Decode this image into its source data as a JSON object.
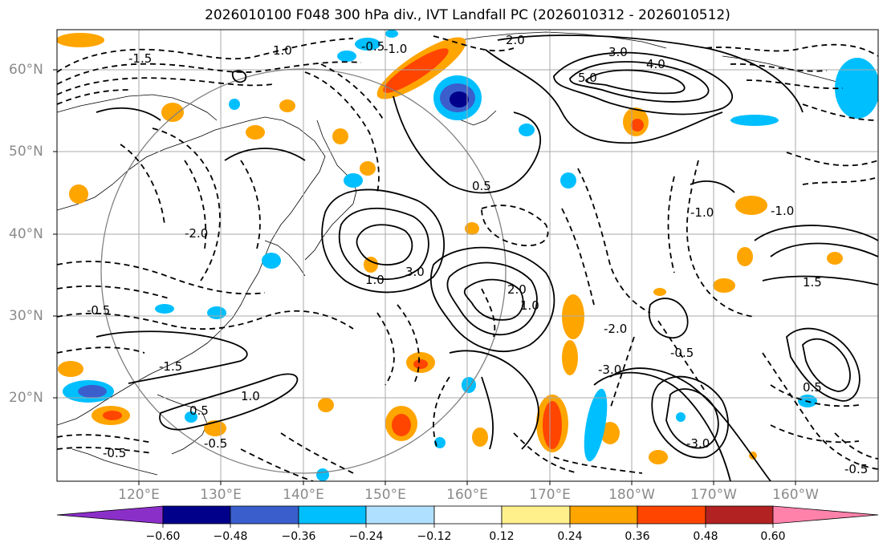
{
  "title": "2026010100 F048 300 hPa div., IVT Landfall PC (2026010312 - 2026010512)",
  "map": {
    "lat_labels": [
      "60°N",
      "50°N",
      "40°N",
      "30°N",
      "20°N"
    ],
    "lon_labels": [
      "120°E",
      "130°E",
      "140°E",
      "150°E",
      "160°E",
      "170°E",
      "180°W",
      "170°W",
      "160°W"
    ],
    "contour_labels": [
      "2.0",
      "-0.5",
      "-1.0",
      "-1.5",
      "3.0",
      "5.0",
      "4.0",
      "0.5",
      "1.5",
      "-2.0",
      "1.0",
      "-3.0",
      "-1.0",
      "-0.5"
    ],
    "grid_on": true
  },
  "colorbar": {
    "ticks": [
      "−0.60",
      "−0.48",
      "−0.36",
      "−0.24",
      "−0.12",
      "0.12",
      "0.24",
      "0.36",
      "0.48",
      "0.60"
    ],
    "colors": [
      "#8b2fc9",
      "#00008b",
      "#3a5fcd",
      "#00bfff",
      "#b0e0ff",
      "#ffffff",
      "#fff08c",
      "#ffa500",
      "#ff4500",
      "#b22222",
      "#ff82ab"
    ]
  }
}
